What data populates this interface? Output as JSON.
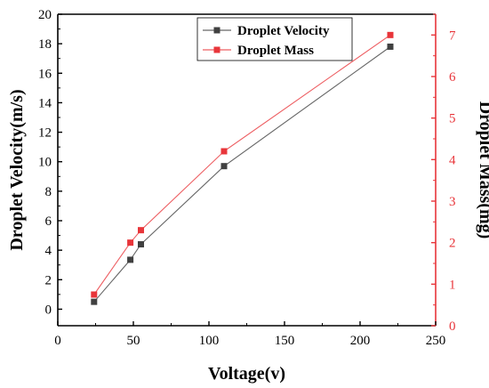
{
  "chart_data": {
    "type": "line",
    "xlabel": "Voltage(v)",
    "ylabel_left": "Droplet Velocity(m/s)",
    "ylabel_right": "Droplet Mass(mg)",
    "xlim": [
      0,
      250
    ],
    "ylim_left": [
      -1.12,
      20
    ],
    "ylim_right": [
      0,
      7.5
    ],
    "x_ticks": [
      0,
      50,
      100,
      150,
      200,
      250
    ],
    "y_left_ticks": [
      0,
      2,
      4,
      6,
      8,
      10,
      12,
      14,
      16,
      18,
      20
    ],
    "y_right_ticks": [
      0,
      1,
      2,
      3,
      4,
      5,
      6,
      7
    ],
    "grid": false,
    "legend_position": "top-center",
    "series": [
      {
        "name": "Droplet Velocity",
        "axis": "left",
        "color": "#404040",
        "marker": "square",
        "x": [
          24,
          48,
          55,
          110,
          220
        ],
        "y": [
          0.5,
          3.35,
          4.4,
          9.7,
          17.8
        ]
      },
      {
        "name": "Droplet Mass",
        "axis": "right",
        "color": "#e8353a",
        "marker": "square",
        "x": [
          24,
          48,
          55,
          110,
          220
        ],
        "y": [
          0.75,
          2.0,
          2.3,
          4.2,
          7.0
        ]
      }
    ],
    "right_axis_color": "#e8353a"
  }
}
